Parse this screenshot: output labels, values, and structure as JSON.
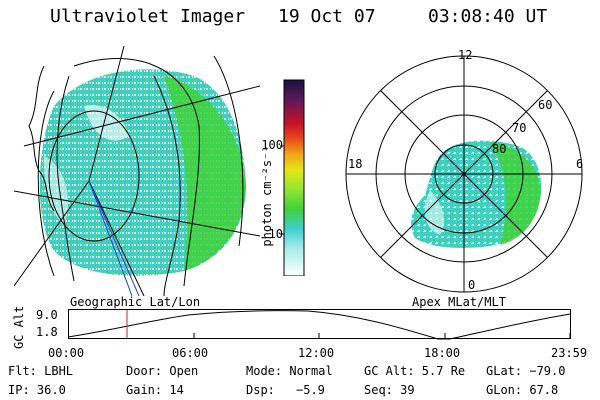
{
  "header": {
    "instrument": "Ultraviolet Imager",
    "date": "19 Oct 07",
    "time": "03:08:40 UT"
  },
  "colorbar": {
    "unit_label": "photon cm⁻²s⁻¹",
    "ticks": [
      "100",
      "10"
    ]
  },
  "panels": {
    "left_label": "Geographic Lat/Lon",
    "right_label": "Apex MLat/MLT"
  },
  "polar": {
    "mlt_labels": [
      "12",
      "18",
      "6",
      "0"
    ],
    "mlat_labels": [
      "60",
      "70",
      "80"
    ]
  },
  "altitude_plot": {
    "ylabel": "GC Alt",
    "yticks": [
      "9.0",
      "1.8"
    ],
    "xticks": [
      "00:00",
      "06:00",
      "12:00",
      "18:00",
      "23:59"
    ],
    "current_time_marker": "03:08"
  },
  "status": {
    "flt": "Flt: LBHL",
    "door": "Door: Open",
    "mode": "Mode: Normal",
    "gc_alt": "GC Alt: 5.7 Re",
    "glat": "GLat: −79.0",
    "ip": "IP: 36.0",
    "gain": "Gain: 14",
    "dsp_label": "Dsp:",
    "dsp_value": "−5.9",
    "seq": "Seq: 39",
    "glon": "GLon:  67.8"
  },
  "colors": {
    "aurora_green": "#3fd13a",
    "aurora_cyan": "#3ccfcf",
    "aurora_pale": "#c8f0f0",
    "marker_red": "#cc2222",
    "grid_blue": "#1f3fd6"
  }
}
